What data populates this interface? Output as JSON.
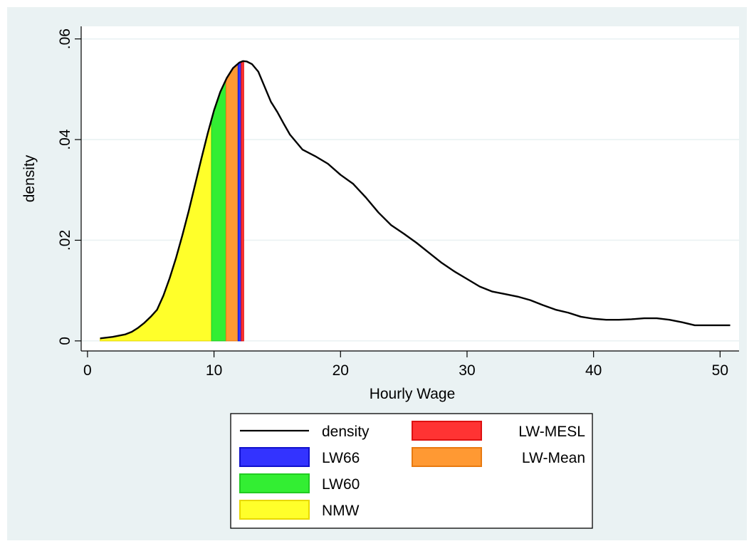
{
  "chart_data": {
    "type": "area",
    "title": "",
    "xlabel": "Hourly Wage",
    "ylabel": "density",
    "xlim": [
      -0.5,
      51.5
    ],
    "ylim": [
      -0.002,
      0.0625
    ],
    "xticks": [
      0,
      10,
      20,
      30,
      40,
      50
    ],
    "xtick_labels": [
      "0",
      "10",
      "20",
      "30",
      "40",
      "50"
    ],
    "yticks": [
      0,
      0.02,
      0.04,
      0.06
    ],
    "ytick_labels": [
      "0",
      ".02",
      ".04",
      ".06"
    ],
    "grid": true,
    "legend_position": "bottom",
    "density_curve": {
      "name": "density",
      "color": "#000000",
      "x": [
        1.0,
        2.0,
        3.0,
        3.5,
        4.0,
        4.5,
        5.0,
        5.5,
        6.0,
        6.5,
        7.0,
        7.5,
        8.0,
        8.5,
        9.0,
        9.5,
        10.0,
        10.5,
        11.0,
        11.5,
        12.0,
        12.3,
        12.6,
        13.0,
        13.5,
        14.0,
        14.5,
        15.0,
        15.5,
        16.0,
        17.0,
        18.0,
        19.0,
        20.0,
        21.0,
        22.0,
        23.0,
        24.0,
        25.0,
        26.0,
        27.0,
        28.0,
        29.0,
        30.0,
        31.0,
        32.0,
        33.0,
        34.0,
        35.0,
        36.0,
        37.0,
        38.0,
        39.0,
        40.0,
        41.0,
        42.0,
        43.0,
        44.0,
        45.0,
        46.0,
        47.0,
        48.0,
        49.0,
        50.0,
        50.8
      ],
      "y": [
        0.0005,
        0.0008,
        0.0013,
        0.0018,
        0.0026,
        0.0036,
        0.0048,
        0.0062,
        0.009,
        0.0125,
        0.0165,
        0.021,
        0.0258,
        0.031,
        0.0362,
        0.0412,
        0.0458,
        0.0495,
        0.0522,
        0.0542,
        0.0553,
        0.0556,
        0.0555,
        0.055,
        0.0535,
        0.0505,
        0.0475,
        0.0455,
        0.0432,
        0.041,
        0.038,
        0.0367,
        0.0352,
        0.033,
        0.0312,
        0.0285,
        0.0255,
        0.023,
        0.0213,
        0.0195,
        0.0175,
        0.0155,
        0.0138,
        0.0123,
        0.0108,
        0.0098,
        0.0093,
        0.0088,
        0.0081,
        0.0071,
        0.0062,
        0.0056,
        0.0048,
        0.0044,
        0.0042,
        0.0042,
        0.0043,
        0.0045,
        0.0045,
        0.0042,
        0.0037,
        0.0031,
        0.0031,
        0.0031,
        0.0031
      ]
    },
    "filled_regions": [
      {
        "name": "NMW",
        "color": "#ffff2a",
        "stroke": "#e8d800",
        "x_start": 1.0,
        "x_end": 9.8
      },
      {
        "name": "LW60",
        "color": "#33ee33",
        "stroke": "#22cc22",
        "x_start": 9.8,
        "x_end": 10.95
      },
      {
        "name": "LW-Mean",
        "color": "#ff9933",
        "stroke": "#e87a10",
        "x_start": 10.95,
        "x_end": 11.9
      },
      {
        "name": "LW66",
        "color": "#3333ff",
        "stroke": "#1111cc",
        "x_start": 11.9,
        "x_end": 12.15
      },
      {
        "name": "LW-MESL",
        "color": "#ff3333",
        "stroke": "#dd1111",
        "x_start": 12.15,
        "x_end": 12.35
      }
    ],
    "legend": [
      {
        "name": "density",
        "kind": "line",
        "color": "#000000"
      },
      {
        "name": "LW-MESL",
        "kind": "patch",
        "color": "#ff3333",
        "stroke": "#dd1111"
      },
      {
        "name": "LW66",
        "kind": "patch",
        "color": "#3333ff",
        "stroke": "#1111cc"
      },
      {
        "name": "LW-Mean",
        "kind": "patch",
        "color": "#ff9933",
        "stroke": "#e87a10"
      },
      {
        "name": "LW60",
        "kind": "patch",
        "color": "#33ee33",
        "stroke": "#22cc22"
      },
      {
        "name": "NMW",
        "kind": "patch",
        "color": "#ffff2a",
        "stroke": "#e8d800"
      }
    ],
    "colors": {
      "outer_background": "#eaf2f3",
      "plot_background": "#ffffff",
      "gridline": "#eaf2f3"
    }
  }
}
